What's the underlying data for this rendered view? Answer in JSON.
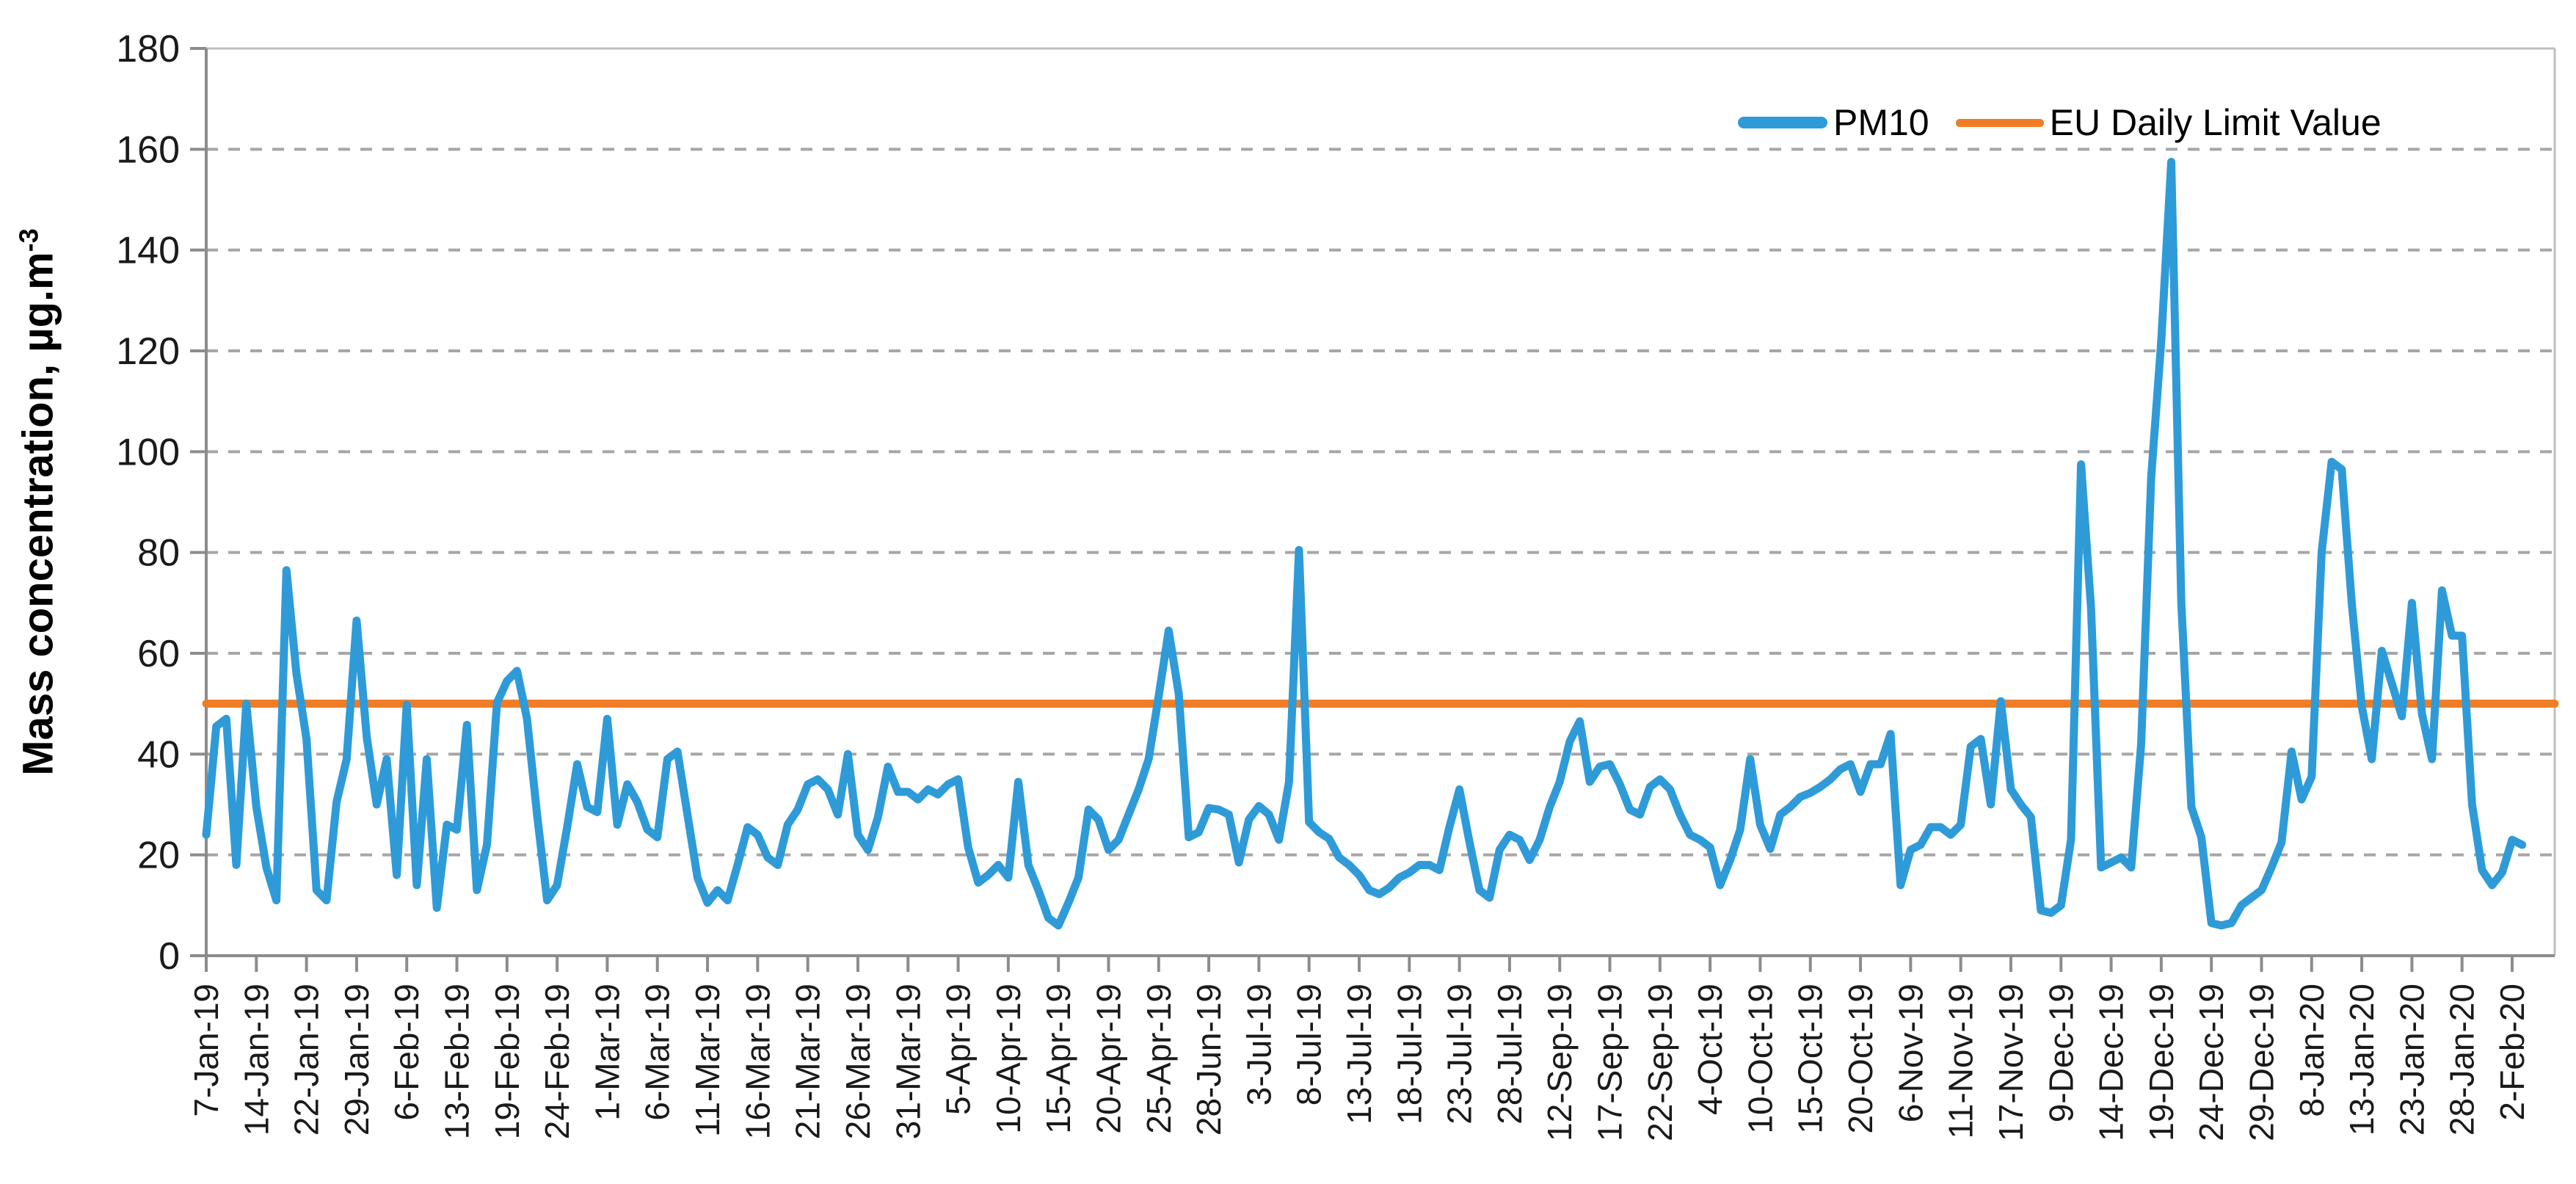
{
  "chart_data": {
    "type": "line",
    "title": "",
    "ylabel_main": "Mass concentration, µg.m",
    "ylabel_sup": "-3",
    "xlabel": "",
    "ylim": [
      0,
      180
    ],
    "y_ticks": [
      "0",
      "20",
      "40",
      "60",
      "80",
      "100",
      "120",
      "140",
      "160",
      "180"
    ],
    "grid": "horizontal-dashed",
    "legend_position": "top-right-inside",
    "x_tick_labels": [
      "7-Jan-19",
      "14-Jan-19",
      "22-Jan-19",
      "29-Jan-19",
      "6-Feb-19",
      "13-Feb-19",
      "19-Feb-19",
      "24-Feb-19",
      "1-Mar-19",
      "6-Mar-19",
      "11-Mar-19",
      "16-Mar-19",
      "21-Mar-19",
      "26-Mar-19",
      "31-Mar-19",
      "5-Apr-19",
      "10-Apr-19",
      "15-Apr-19",
      "20-Apr-19",
      "25-Apr-19",
      "28-Jun-19",
      "3-Jul-19",
      "8-Jul-19",
      "13-Jul-19",
      "18-Jul-19",
      "23-Jul-19",
      "28-Jul-19",
      "12-Sep-19",
      "17-Sep-19",
      "22-Sep-19",
      "4-Oct-19",
      "10-Oct-19",
      "15-Oct-19",
      "20-Oct-19",
      "6-Nov-19",
      "11-Nov-19",
      "17-Nov-19",
      "9-Dec-19",
      "14-Dec-19",
      "19-Dec-19",
      "24-Dec-19",
      "29-Dec-19",
      "8-Jan-20",
      "13-Jan-20",
      "23-Jan-20",
      "28-Jan-20",
      "2-Feb-20"
    ],
    "points_per_tick_interval": 5,
    "series": [
      {
        "name": "PM10",
        "color": "#2E9BD8",
        "values": [
          24,
          45.5,
          47,
          18,
          50,
          29.5,
          17.5,
          11,
          76.5,
          56,
          43,
          13,
          11,
          30.5,
          39,
          66.5,
          43.5,
          30,
          39,
          16,
          49.8,
          14,
          39,
          9.5,
          26,
          25,
          45.8,
          13,
          22,
          50.2,
          54.5,
          56.5,
          47,
          28,
          11,
          14,
          25.5,
          38,
          29.5,
          28.5,
          47,
          26,
          34,
          30.5,
          25,
          23.5,
          39,
          40.5,
          28,
          15.5,
          10.5,
          13,
          11,
          18,
          25.5,
          24,
          19.5,
          18,
          26,
          29,
          34,
          35,
          33,
          28,
          40,
          24,
          21,
          27.5,
          37.5,
          32.5,
          32.5,
          31,
          33,
          32,
          34,
          35,
          21.5,
          14.5,
          16,
          18,
          15.5,
          34.5,
          18,
          13,
          7.5,
          6,
          10.5,
          15.5,
          29,
          27,
          21,
          23,
          28,
          33,
          39,
          51.5,
          64.5,
          52,
          23.5,
          24.5,
          29.3,
          29,
          28,
          18.5,
          27,
          29.7,
          28,
          23,
          34.5,
          80.5,
          26.5,
          24.5,
          23.2,
          19.5,
          18,
          16,
          13,
          12.2,
          13.5,
          15.5,
          16.5,
          18,
          18,
          17,
          25.5,
          33,
          22.5,
          13,
          11.5,
          21,
          24,
          23,
          19,
          23,
          29.5,
          34.5,
          42.5,
          46.5,
          34.5,
          37.5,
          38,
          34,
          29,
          28,
          33.5,
          35,
          33,
          28,
          24,
          23,
          21.5,
          14,
          19,
          25,
          39,
          26,
          21.2,
          28,
          29.5,
          31.5,
          32.3,
          33.5,
          35,
          37,
          38,
          32.5,
          38,
          38,
          44,
          14,
          21,
          22,
          25.5,
          25.5,
          24,
          26,
          41.5,
          43,
          30,
          50.5,
          33,
          30,
          27.5,
          9,
          8.5,
          10,
          23,
          97.5,
          69,
          17.5,
          18.5,
          19.5,
          17.5,
          42,
          95,
          122,
          157.5,
          70,
          29.5,
          23.5,
          6.5,
          6,
          6.5,
          10,
          11.5,
          13,
          17.5,
          22.5,
          40.5,
          31,
          35.5,
          80,
          98,
          96.5,
          70,
          49.5,
          39,
          60.5,
          54,
          47.5,
          70,
          48,
          39,
          72.5,
          63.5,
          63.5,
          30,
          17,
          14,
          16.5,
          23,
          22
        ]
      }
    ],
    "limit_line": {
      "name": "EU Daily Limit Value",
      "value": 50,
      "color": "#F07D26"
    },
    "legend": [
      {
        "label": "PM10",
        "color": "#2E9BD8"
      },
      {
        "label": "EU Daily Limit Value",
        "color": "#F07D26"
      }
    ]
  },
  "colors": {
    "series_blue": "#2E9BD8",
    "limit_orange": "#F07D26",
    "gridline_gray": "#A6A6A6",
    "axis_gray": "#8C8C8C",
    "border_gray": "#BFBFBF",
    "text_black": "#1A1A1A"
  }
}
